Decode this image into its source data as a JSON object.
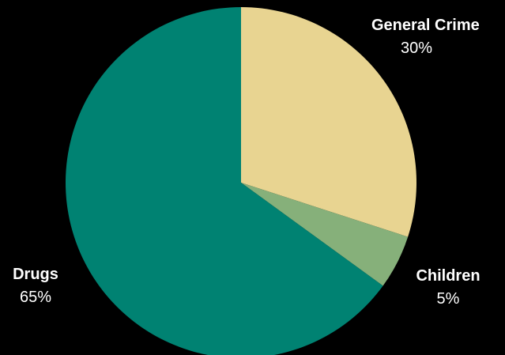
{
  "chart_data": {
    "type": "pie",
    "slices": [
      {
        "name": "General Crime",
        "value": 30,
        "label": "30%",
        "color": "#e8d491"
      },
      {
        "name": "Children",
        "value": 5,
        "label": "5%",
        "color": "#86b07a"
      },
      {
        "name": "Drugs",
        "value": 65,
        "label": "65%",
        "color": "#008272"
      }
    ],
    "start_angle_deg": 0,
    "direction": "clockwise",
    "background": "#000000"
  }
}
